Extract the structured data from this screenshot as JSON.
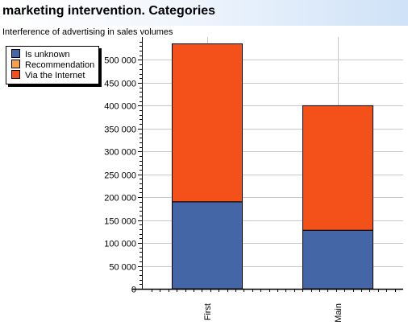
{
  "header": {
    "title": "marketing intervention. Categories"
  },
  "subtitle": "Interference of advertising in sales volumes",
  "legend": {
    "items": [
      {
        "label": "Is unknown",
        "color": "#4466a6"
      },
      {
        "label": "Recommendation",
        "color": "#f5a145"
      },
      {
        "label": "Via the Internet",
        "color": "#f45019"
      }
    ]
  },
  "chart_data": {
    "type": "bar",
    "stacked": true,
    "categories": [
      "First",
      "Main"
    ],
    "series": [
      {
        "name": "Is unknown",
        "values": [
          190000,
          128000
        ],
        "color": "#4466a6"
      },
      {
        "name": "Recommendation",
        "values": [
          0,
          0
        ],
        "color": "#f5a145"
      },
      {
        "name": "Via the Internet",
        "values": [
          345000,
          272000
        ],
        "color": "#f45019"
      }
    ],
    "ylim": [
      0,
      550000
    ],
    "yticks": [
      0,
      50000,
      100000,
      150000,
      200000,
      250000,
      300000,
      350000,
      400000,
      450000,
      500000
    ],
    "ytick_labels": [
      "0",
      "50 000",
      "100 000",
      "150 000",
      "200 000",
      "250 000",
      "300 000",
      "350 000",
      "400 000",
      "450 000",
      "500 000"
    ],
    "grid": true,
    "legend_position": "top-left"
  }
}
